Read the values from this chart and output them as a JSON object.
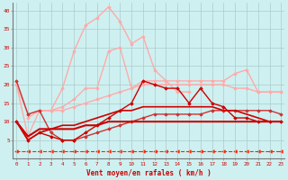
{
  "xlabel": "Vent moyen/en rafales ( km/h )",
  "x_full": [
    0,
    1,
    2,
    3,
    4,
    5,
    6,
    7,
    8,
    9,
    10,
    11,
    12,
    13,
    14,
    15,
    16,
    17,
    18,
    19,
    20,
    21,
    22,
    23
  ],
  "ylim": [
    0,
    42
  ],
  "xlim": [
    -0.3,
    23.3
  ],
  "bg_color": "#cff0f0",
  "grid_color": "#aacccc",
  "yticks": [
    5,
    10,
    15,
    20,
    25,
    30,
    35,
    40
  ],
  "lines": [
    {
      "x": [
        0,
        1,
        2,
        3,
        4,
        5,
        6,
        7,
        8,
        9,
        10,
        11,
        12,
        13,
        14,
        15,
        16,
        17,
        18,
        19,
        20,
        21,
        22,
        23
      ],
      "y": [
        2,
        2,
        2,
        2,
        2,
        2,
        2,
        2,
        2,
        2,
        2,
        2,
        2,
        2,
        2,
        2,
        2,
        2,
        2,
        2,
        2,
        2,
        2,
        2
      ],
      "color": "#ff2200",
      "lw": 0.8,
      "marker": "<",
      "ms": 2.5,
      "ls": "--",
      "zorder": 1
    },
    {
      "x": [
        0,
        1,
        2,
        3,
        4,
        5,
        6,
        7,
        8,
        9,
        10,
        11,
        12,
        13,
        14,
        15,
        16,
        17,
        18,
        19,
        20,
        21,
        22,
        23
      ],
      "y": [
        10,
        6,
        8,
        8,
        8,
        8,
        9,
        9,
        10,
        10,
        10,
        10,
        10,
        10,
        10,
        10,
        10,
        10,
        10,
        10,
        10,
        10,
        10,
        10
      ],
      "color": "#cc0000",
      "lw": 1.5,
      "marker": null,
      "ms": 0,
      "ls": "-",
      "zorder": 4
    },
    {
      "x": [
        0,
        1,
        2,
        3,
        4,
        5,
        6,
        7,
        8,
        9,
        10,
        11,
        12,
        13,
        14,
        15,
        16,
        17,
        18,
        19,
        20,
        21,
        22,
        23
      ],
      "y": [
        10,
        5,
        7,
        8,
        9,
        9,
        10,
        11,
        12,
        13,
        13,
        14,
        14,
        14,
        14,
        14,
        14,
        14,
        13,
        13,
        12,
        11,
        10,
        10
      ],
      "color": "#cc0000",
      "lw": 1.2,
      "marker": null,
      "ms": 0,
      "ls": "-",
      "zorder": 4
    },
    {
      "x": [
        0,
        1,
        2,
        3,
        4,
        5,
        6,
        7,
        8,
        9,
        10,
        11,
        12,
        13,
        14,
        15,
        16,
        17,
        18,
        19,
        20,
        21,
        22,
        23
      ],
      "y": [
        10,
        5,
        7,
        6,
        5,
        5,
        7,
        9,
        11,
        13,
        15,
        21,
        20,
        19,
        19,
        15,
        19,
        15,
        14,
        11,
        11,
        10,
        10,
        10
      ],
      "color": "#cc0000",
      "lw": 1.0,
      "marker": "D",
      "ms": 1.8,
      "ls": "-",
      "zorder": 5
    },
    {
      "x": [
        0,
        1,
        2,
        3,
        4,
        5,
        6,
        7,
        8,
        9,
        10,
        11,
        12,
        13,
        14,
        15,
        16,
        17,
        18,
        19,
        20,
        21,
        22,
        23
      ],
      "y": [
        21,
        12,
        13,
        7,
        5,
        5,
        6,
        7,
        8,
        9,
        10,
        11,
        12,
        12,
        12,
        12,
        12,
        13,
        13,
        13,
        13,
        13,
        13,
        12
      ],
      "color": "#cc3333",
      "lw": 1.0,
      "marker": "D",
      "ms": 1.8,
      "ls": "-",
      "zorder": 3
    },
    {
      "x": [
        0,
        1,
        2,
        3,
        4,
        5,
        6,
        7,
        8,
        9,
        10,
        11,
        12,
        13,
        14,
        15,
        16,
        17,
        18,
        19,
        20,
        21,
        22,
        23
      ],
      "y": [
        20,
        12,
        13,
        13,
        13,
        14,
        15,
        16,
        17,
        18,
        19,
        20,
        20,
        20,
        20,
        20,
        20,
        20,
        20,
        19,
        19,
        18,
        18,
        18
      ],
      "color": "#ffaaaa",
      "lw": 1.0,
      "marker": "D",
      "ms": 1.8,
      "ls": "-",
      "zorder": 2
    },
    {
      "x": [
        0,
        1,
        2,
        3,
        4,
        5,
        6,
        7,
        8,
        9,
        10,
        11,
        12,
        13,
        14,
        15,
        16,
        17,
        18,
        19,
        20,
        21,
        22,
        23
      ],
      "y": [
        12,
        11,
        13,
        13,
        14,
        16,
        19,
        19,
        29,
        30,
        19,
        21,
        21,
        21,
        21,
        21,
        21,
        21,
        21,
        23,
        24,
        18,
        18,
        18
      ],
      "color": "#ffaaaa",
      "lw": 1.0,
      "marker": "D",
      "ms": 1.8,
      "ls": "-",
      "zorder": 2,
      "x_start": 1
    },
    {
      "x": [
        0,
        1,
        2,
        3,
        4,
        5,
        6,
        7,
        8,
        9,
        10,
        11,
        12,
        13,
        14,
        15,
        16,
        17,
        18,
        19,
        20,
        21,
        22,
        23
      ],
      "y": [
        20,
        6,
        13,
        13,
        19,
        29,
        36,
        38,
        41,
        37,
        31,
        33,
        24,
        21,
        18,
        18,
        18,
        18,
        18,
        18,
        18,
        18,
        18,
        18
      ],
      "color": "#ffaaaa",
      "lw": 1.0,
      "marker": "D",
      "ms": 1.8,
      "ls": "-",
      "zorder": 2,
      "x_end": 15
    }
  ]
}
